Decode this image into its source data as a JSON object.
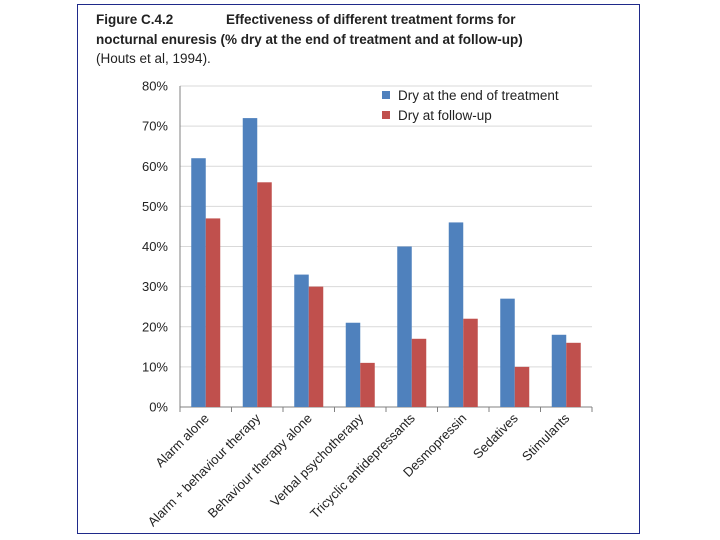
{
  "figure": {
    "label": "Figure C.4.2",
    "title_line1": "Effectiveness of different treatment forms for",
    "title_line2": "nocturnal enuresis (% dry at the end of treatment and at follow-up)",
    "source": "(Houts et al, 1994)."
  },
  "colors": {
    "series1": "#4f81bd",
    "series2": "#c0504d",
    "frame": "#1f2a8a",
    "grid": "#d9d9d9",
    "axis": "#808080"
  },
  "chart_data": {
    "type": "bar",
    "categories": [
      "Alarm alone",
      "Alarm + behaviour therapy",
      "Behaviour therapy alone",
      "Verbal psychotherapy",
      "Tricyclic antidepressants",
      "Desmopressin",
      "Sedatives",
      "Stimulants"
    ],
    "series": [
      {
        "name": "Dry at the end of treatment",
        "values": [
          62,
          72,
          33,
          21,
          40,
          46,
          27,
          18
        ]
      },
      {
        "name": "Dry at follow-up",
        "values": [
          47,
          56,
          30,
          11,
          17,
          22,
          10,
          16
        ]
      }
    ],
    "ylim": [
      0,
      80
    ],
    "yticks": [
      "0%",
      "10%",
      "20%",
      "30%",
      "40%",
      "50%",
      "60%",
      "70%",
      "80%"
    ],
    "title": "",
    "xlabel": "",
    "ylabel": "",
    "grid": true,
    "legend": "top-right"
  }
}
